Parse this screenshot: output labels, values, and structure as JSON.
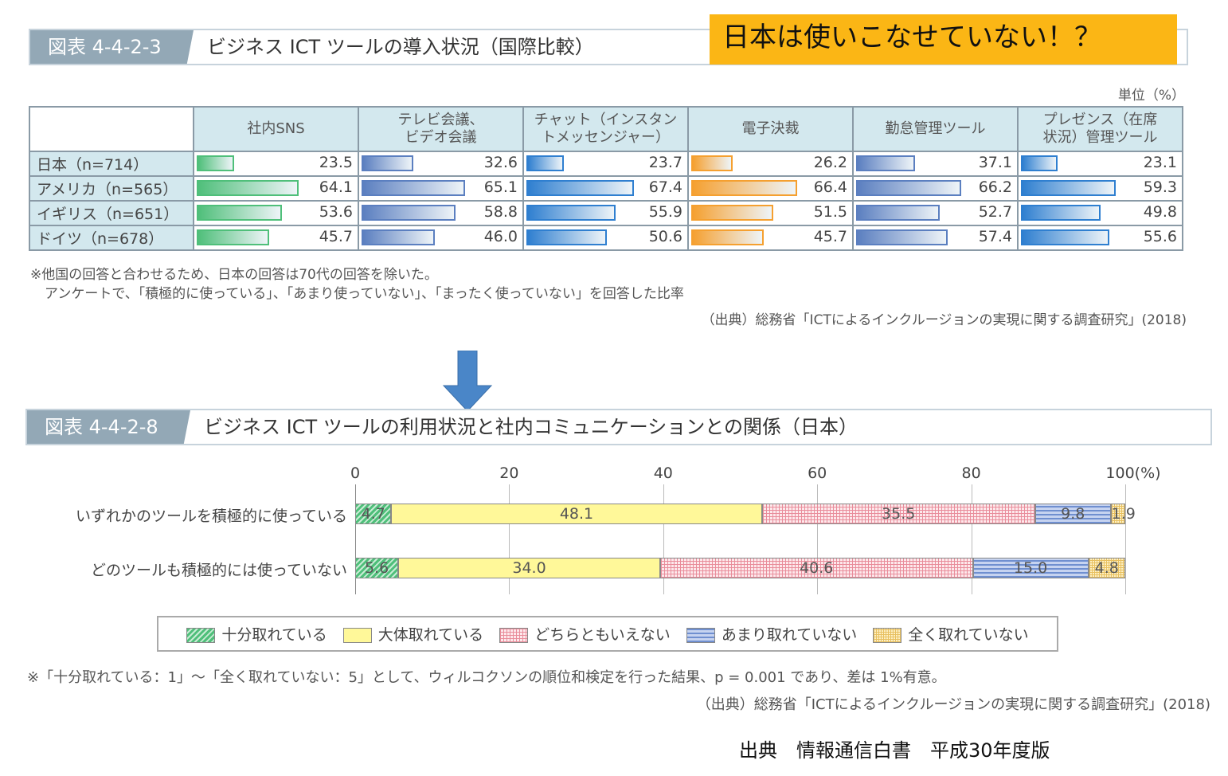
{
  "top": {
    "tag": "図表 4-4-2-3",
    "title": "ビジネス ICT ツールの導入状況（国際比較）",
    "callout": "日本は使いこなせていない！？",
    "unit": "単位（%）",
    "notes": [
      "※他国の回答と合わせるため、日本の回答は70代の回答を除いた。",
      "アンケートで、「積極的に使っている」、「あまり使っていない」、「まったく使っていない」を回答した比率"
    ],
    "source": "（出典）総務省「ICTによるインクルージョンの実現に関する調査研究」(2018)"
  },
  "bottom": {
    "tag": "図表 4-4-2-8",
    "title": "ビジネス ICT ツールの利用状況と社内コミュニケーションとの関係（日本）",
    "note": "※「十分取れている：1」～「全く取れていない：5」として、ウィルコクソンの順位和検定を行った結果、p = 0.001 であり、差は 1%有意。",
    "source": "（出典）総務省「ICTによるインクルージョンの実現に関する調査研究」(2018)"
  },
  "footer": "出典　情報通信白書　平成30年度版",
  "chart_data": [
    {
      "type": "table",
      "title": "ビジネス ICT ツールの導入状況（国際比較）",
      "unit": "%",
      "columns": [
        "社内SNS",
        "テレビ会議、ビデオ会議",
        "チャット（インスタントメッセンジャー）",
        "電子決裁",
        "勤怠管理ツール",
        "プレゼンス（在席状況）管理ツール"
      ],
      "column_lines": [
        [
          "社内SNS"
        ],
        [
          "テレビ会議、",
          "ビデオ会議"
        ],
        [
          "チャット（インスタン",
          "トメッセンジャー）"
        ],
        [
          "電子決裁"
        ],
        [
          "勤怠管理ツール"
        ],
        [
          "プレゼンス（在席",
          "状況）管理ツール"
        ]
      ],
      "colors": [
        "#4fbf7a",
        "#5b7fc0",
        "#2f7fd0",
        "#f5a030",
        "#5b7fc0",
        "#2f7fd0"
      ],
      "rows": [
        {
          "label": "日本（n=714）",
          "values": [
            23.5,
            32.6,
            23.7,
            26.2,
            37.1,
            23.1
          ]
        },
        {
          "label": "アメリカ（n=565）",
          "values": [
            64.1,
            65.1,
            67.4,
            66.4,
            66.2,
            59.3
          ]
        },
        {
          "label": "イギリス（n=651）",
          "values": [
            53.6,
            58.8,
            55.9,
            51.5,
            52.7,
            49.8
          ]
        },
        {
          "label": "ドイツ（n=678）",
          "values": [
            45.7,
            46.0,
            50.6,
            45.7,
            57.4,
            55.6
          ]
        }
      ]
    },
    {
      "type": "bar",
      "stacked": true,
      "orientation": "horizontal",
      "title": "ビジネス ICT ツールの利用状況と社内コミュニケーションとの関係（日本）",
      "xlim": [
        0,
        100
      ],
      "xticks": [
        "0",
        "20",
        "40",
        "60",
        "80",
        "100(%)"
      ],
      "xtick_values": [
        0,
        20,
        40,
        60,
        80,
        100
      ],
      "categories": [
        "いずれかのツールを積極的に使っている",
        "どのツールも積極的には使っていない"
      ],
      "series": [
        {
          "name": "十分取れている",
          "values": [
            4.7,
            5.6
          ],
          "color": "#4fbf7a"
        },
        {
          "name": "大体取れている",
          "values": [
            48.1,
            34.0
          ],
          "color": "#fff899"
        },
        {
          "name": "どちらともいえない",
          "values": [
            35.5,
            40.6
          ],
          "color": "#f6c9cf"
        },
        {
          "name": "あまり取れていない",
          "values": [
            9.8,
            15.0
          ],
          "color": "#a9bde6"
        },
        {
          "name": "全く取れていない",
          "values": [
            1.9,
            4.8
          ],
          "color": "#fbe3a0"
        }
      ],
      "legend": "bottom",
      "grid": true
    }
  ]
}
